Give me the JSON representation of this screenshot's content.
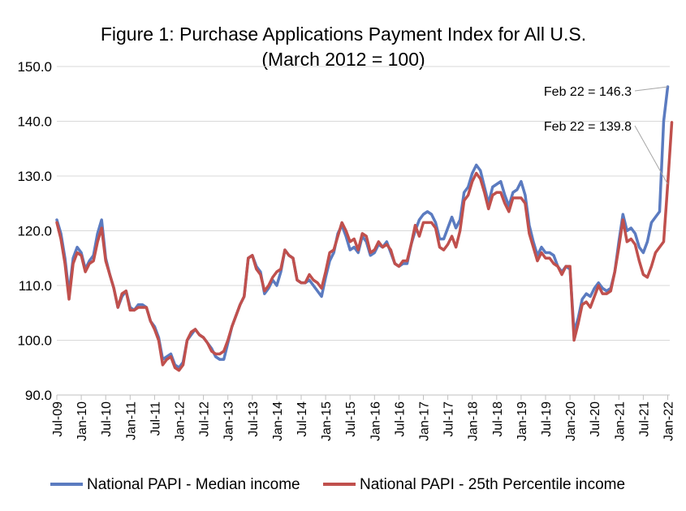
{
  "chart_data": {
    "type": "line",
    "title_line1": "Figure 1: Purchase Applications Payment Index for All U.S.",
    "title_line2": "(March 2012 = 100)",
    "ylim": [
      90,
      150
    ],
    "y_ticks": [
      "90.0",
      "100.0",
      "110.0",
      "120.0",
      "130.0",
      "140.0",
      "150.0"
    ],
    "x_ticks": [
      "Jul-09",
      "Jan-10",
      "Jul-10",
      "Jan-11",
      "Jul-11",
      "Jan-12",
      "Jul-12",
      "Jan-13",
      "Jul-13",
      "Jan-14",
      "Jul-14",
      "Jan-15",
      "Jul-15",
      "Jan-16",
      "Jul-16",
      "Jan-17",
      "Jul-17",
      "Jan-18",
      "Jul-18",
      "Jan-19",
      "Jul-19",
      "Jan-20",
      "Jul-20",
      "Jan-21",
      "Jul-21",
      "Jan-22"
    ],
    "start": "Jul-09",
    "annotations": [
      {
        "text": "Feb 22 = 146.3",
        "series": 0
      },
      {
        "text": "Feb 22 = 139.8",
        "series": 1
      }
    ],
    "series": [
      {
        "name": "National PAPI - Median income",
        "color": "#5b7bc0",
        "values": [
          122.0,
          119.5,
          115.0,
          108.5,
          115.0,
          117.0,
          116.0,
          113.0,
          114.5,
          115.5,
          119.5,
          122.0,
          115.0,
          112.0,
          109.5,
          106.0,
          108.0,
          109.0,
          106.0,
          105.5,
          106.5,
          106.5,
          106.0,
          103.5,
          102.5,
          100.5,
          96.5,
          97.0,
          97.5,
          95.5,
          95.0,
          96.0,
          100.0,
          101.0,
          102.0,
          101.0,
          100.5,
          99.5,
          98.5,
          97.0,
          96.5,
          96.5,
          99.5,
          102.5,
          104.5,
          106.5,
          108.0,
          115.0,
          115.5,
          113.5,
          112.5,
          108.5,
          109.5,
          111.0,
          110.0,
          112.5,
          116.5,
          115.5,
          115.0,
          111.0,
          110.5,
          110.5,
          111.0,
          110.0,
          109.0,
          108.0,
          111.5,
          114.5,
          116.0,
          119.5,
          121.0,
          119.0,
          116.5,
          117.0,
          116.0,
          119.0,
          118.0,
          115.5,
          116.0,
          117.5,
          117.0,
          118.0,
          116.0,
          114.0,
          113.5,
          114.0,
          114.0,
          117.5,
          120.0,
          122.0,
          123.0,
          123.5,
          123.0,
          121.5,
          118.5,
          118.5,
          120.5,
          122.5,
          120.5,
          122.0,
          127.0,
          128.0,
          130.5,
          132.0,
          131.0,
          128.0,
          125.0,
          128.0,
          128.5,
          129.0,
          126.5,
          124.5,
          127.0,
          127.5,
          129.0,
          126.5,
          121.0,
          118.0,
          115.5,
          117.0,
          116.0,
          116.0,
          115.5,
          113.5,
          112.5,
          113.5,
          113.0,
          101.5,
          104.0,
          107.5,
          108.5,
          108.0,
          109.5,
          110.5,
          109.5,
          109.0,
          109.5,
          112.5,
          118.0,
          123.0,
          120.0,
          120.5,
          119.5,
          117.0,
          116.0,
          118.0,
          121.5,
          122.5,
          123.5,
          140.0,
          146.3
        ]
      },
      {
        "name": "National PAPI - 25th Percentile income",
        "color": "#c0504d",
        "values": [
          121.5,
          118.5,
          114.0,
          107.5,
          114.0,
          116.0,
          115.5,
          112.5,
          114.0,
          114.5,
          118.0,
          120.5,
          114.5,
          112.0,
          109.5,
          106.0,
          108.5,
          109.0,
          105.5,
          105.5,
          106.0,
          106.0,
          106.0,
          103.5,
          102.0,
          100.0,
          95.5,
          96.5,
          97.0,
          95.0,
          94.5,
          95.5,
          100.0,
          101.5,
          102.0,
          101.0,
          100.5,
          99.5,
          98.0,
          97.5,
          97.5,
          98.0,
          100.0,
          102.5,
          104.5,
          106.5,
          108.0,
          115.0,
          115.5,
          113.0,
          112.0,
          109.0,
          110.0,
          111.5,
          112.5,
          113.0,
          116.5,
          115.5,
          115.0,
          111.0,
          110.5,
          110.5,
          112.0,
          111.0,
          110.5,
          109.5,
          112.5,
          116.0,
          116.5,
          119.0,
          121.5,
          120.0,
          118.0,
          118.5,
          116.5,
          119.5,
          119.0,
          116.0,
          116.5,
          118.0,
          117.0,
          117.5,
          116.5,
          114.0,
          113.5,
          114.5,
          114.5,
          117.5,
          121.0,
          119.0,
          121.5,
          121.5,
          121.5,
          120.5,
          117.0,
          116.5,
          117.5,
          119.0,
          117.0,
          120.0,
          125.5,
          126.5,
          129.0,
          130.5,
          129.5,
          127.0,
          124.0,
          126.5,
          127.0,
          127.0,
          125.0,
          123.5,
          126.0,
          126.0,
          126.0,
          125.0,
          119.5,
          117.0,
          114.5,
          116.0,
          115.0,
          115.0,
          114.0,
          113.5,
          112.0,
          113.5,
          113.5,
          100.0,
          103.0,
          106.5,
          107.0,
          106.0,
          108.0,
          110.0,
          108.5,
          108.5,
          109.0,
          112.5,
          117.0,
          122.0,
          118.0,
          118.5,
          117.5,
          114.5,
          112.0,
          111.5,
          113.5,
          116.0,
          117.0,
          118.0,
          128.5,
          139.8
        ]
      }
    ]
  }
}
